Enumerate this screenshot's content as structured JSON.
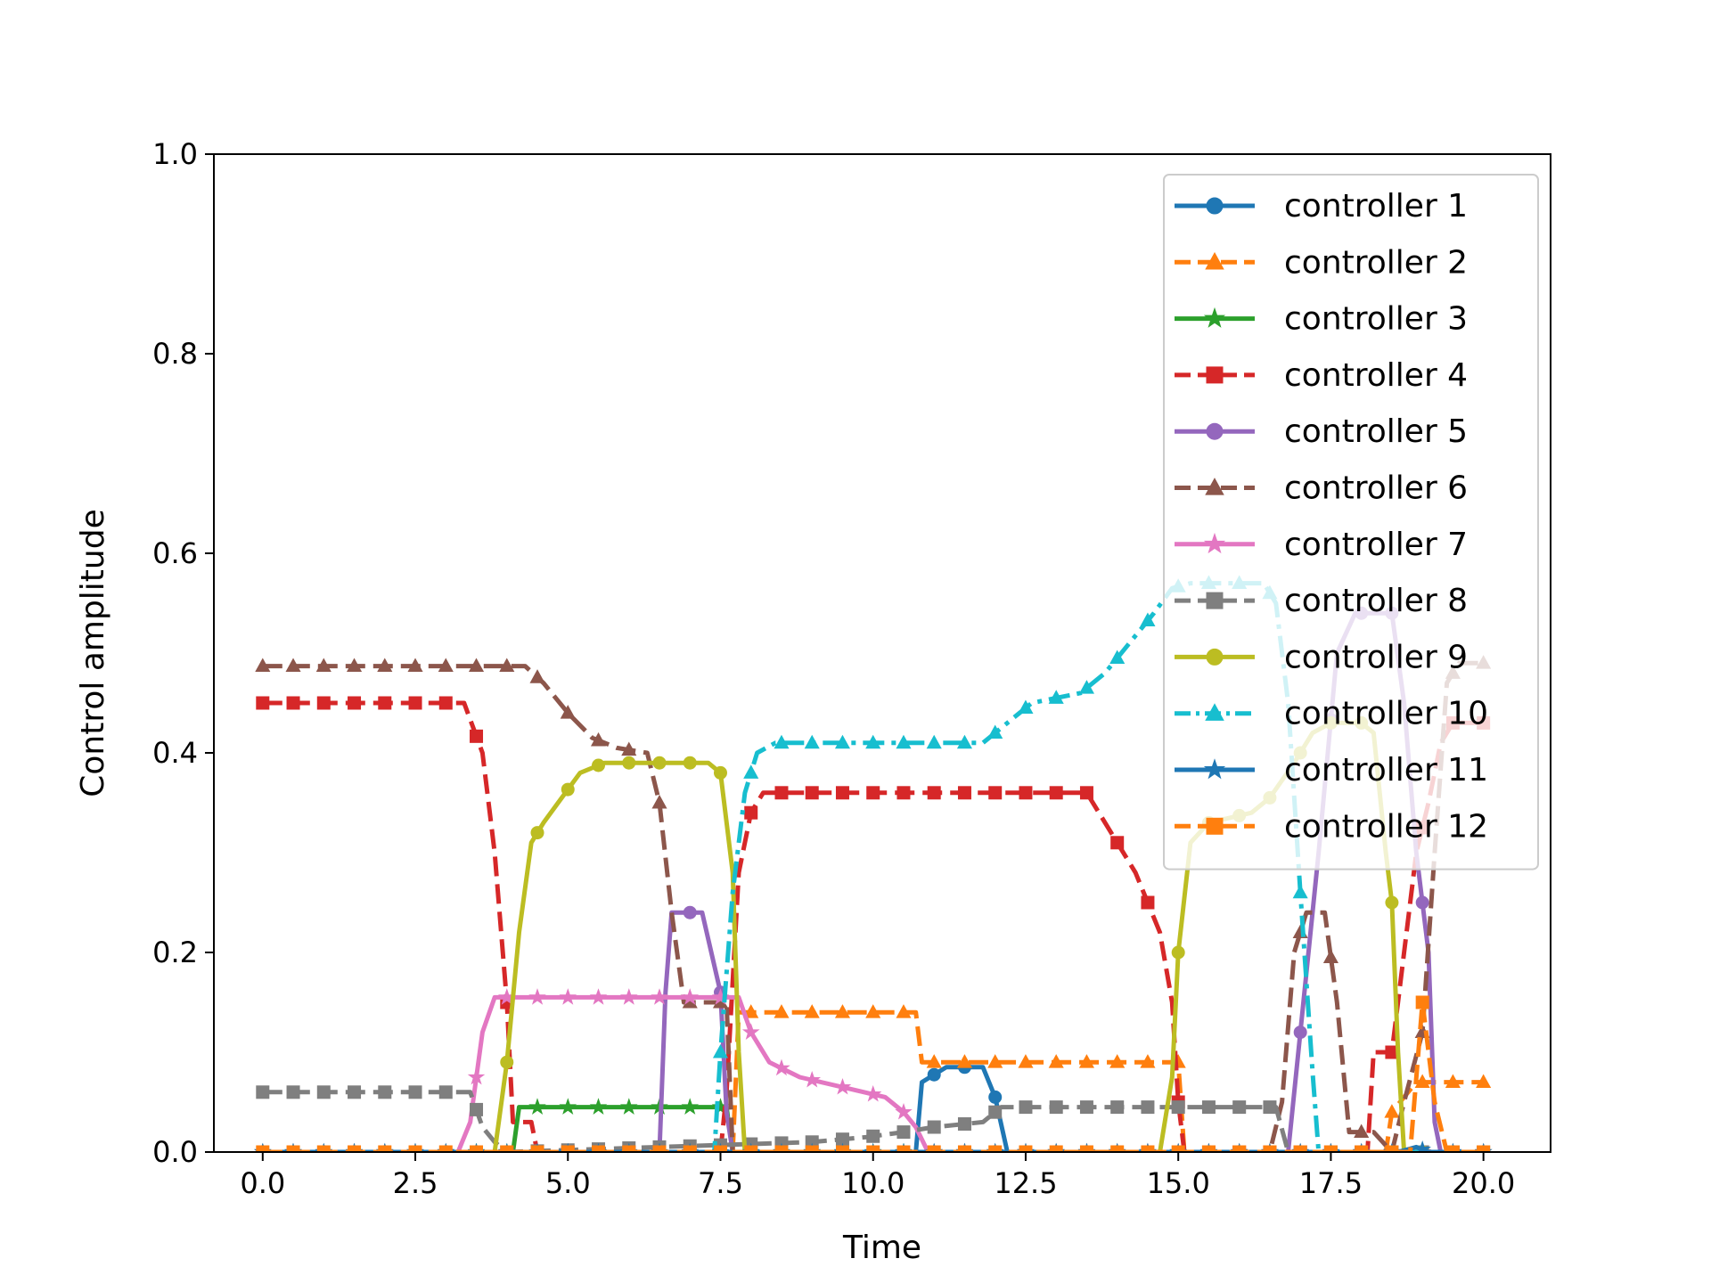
{
  "chart_data": {
    "type": "line",
    "title": "",
    "xlabel": "Time",
    "ylabel": "Control amplitude",
    "xlim": [
      -0.8,
      21.1
    ],
    "ylim": [
      0.0,
      1.0
    ],
    "xticks": [
      0.0,
      2.5,
      5.0,
      7.5,
      10.0,
      12.5,
      15.0,
      17.5,
      20.0
    ],
    "xtick_labels": [
      "0.0",
      "2.5",
      "5.0",
      "7.5",
      "10.0",
      "12.5",
      "15.0",
      "17.5",
      "20.0"
    ],
    "yticks": [
      0.0,
      0.2,
      0.4,
      0.6,
      0.8,
      1.0
    ],
    "ytick_labels": [
      "0.0",
      "0.2",
      "0.4",
      "0.6",
      "0.8",
      "1.0"
    ],
    "grid": false,
    "legend_position": "upper right",
    "series": [
      {
        "name": "controller 1",
        "color": "#1f77b4",
        "marker": "circle",
        "dash": "solid",
        "points": [
          [
            0,
            0
          ],
          [
            10.7,
            0
          ],
          [
            10.8,
            0.07
          ],
          [
            11.2,
            0.085
          ],
          [
            11.8,
            0.085
          ],
          [
            12.0,
            0.055
          ],
          [
            12.2,
            0
          ],
          [
            20,
            0
          ]
        ]
      },
      {
        "name": "controller 2",
        "color": "#ff7f0e",
        "marker": "triangle",
        "dash": "dashed",
        "points": [
          [
            0,
            0
          ],
          [
            7.7,
            0
          ],
          [
            7.8,
            0.14
          ],
          [
            10.7,
            0.14
          ],
          [
            10.8,
            0.09
          ],
          [
            15.0,
            0.09
          ],
          [
            15.1,
            0
          ],
          [
            18.4,
            0
          ],
          [
            18.5,
            0.04
          ],
          [
            18.9,
            0.07
          ],
          [
            20,
            0.07
          ]
        ]
      },
      {
        "name": "controller 3",
        "color": "#2ca02c",
        "marker": "star",
        "dash": "solid",
        "points": [
          [
            0,
            0
          ],
          [
            4.1,
            0
          ],
          [
            4.2,
            0.045
          ],
          [
            7.6,
            0.045
          ],
          [
            7.7,
            0
          ],
          [
            20,
            0
          ]
        ]
      },
      {
        "name": "controller 4",
        "color": "#d62728",
        "marker": "square",
        "dash": "dashed",
        "points": [
          [
            0,
            0.45
          ],
          [
            3.3,
            0.45
          ],
          [
            3.6,
            0.4
          ],
          [
            3.8,
            0.3
          ],
          [
            4.0,
            0.15
          ],
          [
            4.1,
            0.03
          ],
          [
            4.4,
            0.03
          ],
          [
            4.5,
            0
          ],
          [
            7.5,
            0
          ],
          [
            7.6,
            0.06
          ],
          [
            7.8,
            0.28
          ],
          [
            8.0,
            0.34
          ],
          [
            8.2,
            0.36
          ],
          [
            13.5,
            0.36
          ],
          [
            13.7,
            0.34
          ],
          [
            14.0,
            0.31
          ],
          [
            14.3,
            0.28
          ],
          [
            14.7,
            0.22
          ],
          [
            14.9,
            0.15
          ],
          [
            15.0,
            0.05
          ],
          [
            15.1,
            0
          ],
          [
            18.1,
            0
          ],
          [
            18.2,
            0.1
          ],
          [
            18.5,
            0.1
          ],
          [
            18.7,
            0.2
          ],
          [
            18.9,
            0.3
          ],
          [
            19.1,
            0.35
          ],
          [
            19.3,
            0.41
          ],
          [
            19.5,
            0.43
          ],
          [
            20,
            0.43
          ]
        ]
      },
      {
        "name": "controller 5",
        "color": "#9467bd",
        "marker": "circle",
        "dash": "solid",
        "points": [
          [
            0,
            0
          ],
          [
            6.5,
            0
          ],
          [
            6.6,
            0.16
          ],
          [
            6.7,
            0.24
          ],
          [
            7.2,
            0.24
          ],
          [
            7.5,
            0.16
          ],
          [
            7.6,
            0.04
          ],
          [
            7.7,
            0
          ],
          [
            16.8,
            0
          ],
          [
            17.0,
            0.12
          ],
          [
            17.3,
            0.3
          ],
          [
            17.6,
            0.5
          ],
          [
            17.9,
            0.54
          ],
          [
            18.5,
            0.54
          ],
          [
            18.7,
            0.45
          ],
          [
            18.9,
            0.3
          ],
          [
            19.1,
            0.2
          ],
          [
            19.2,
            0.03
          ],
          [
            19.3,
            0
          ],
          [
            20,
            0
          ]
        ]
      },
      {
        "name": "controller 6",
        "color": "#8c564b",
        "marker": "triangle",
        "dash": "dashed",
        "points": [
          [
            0,
            0.487
          ],
          [
            4.3,
            0.487
          ],
          [
            4.6,
            0.47
          ],
          [
            5.0,
            0.44
          ],
          [
            5.4,
            0.415
          ],
          [
            5.8,
            0.405
          ],
          [
            6.3,
            0.4
          ],
          [
            6.5,
            0.35
          ],
          [
            6.7,
            0.24
          ],
          [
            6.9,
            0.15
          ],
          [
            7.6,
            0.15
          ],
          [
            7.7,
            0
          ],
          [
            16.5,
            0
          ],
          [
            16.7,
            0.05
          ],
          [
            16.9,
            0.2
          ],
          [
            17.1,
            0.24
          ],
          [
            17.4,
            0.24
          ],
          [
            17.6,
            0.15
          ],
          [
            17.8,
            0.02
          ],
          [
            18.2,
            0.02
          ],
          [
            18.5,
            0
          ],
          [
            18.7,
            0.05
          ],
          [
            19.0,
            0.12
          ],
          [
            19.2,
            0.3
          ],
          [
            19.4,
            0.47
          ],
          [
            19.6,
            0.49
          ],
          [
            20,
            0.49
          ]
        ]
      },
      {
        "name": "controller 7",
        "color": "#e377c2",
        "marker": "star",
        "dash": "solid",
        "points": [
          [
            0,
            0
          ],
          [
            3.2,
            0
          ],
          [
            3.4,
            0.03
          ],
          [
            3.6,
            0.12
          ],
          [
            3.8,
            0.155
          ],
          [
            7.8,
            0.155
          ],
          [
            8.0,
            0.12
          ],
          [
            8.3,
            0.09
          ],
          [
            8.8,
            0.075
          ],
          [
            9.5,
            0.065
          ],
          [
            10.2,
            0.055
          ],
          [
            10.5,
            0.04
          ],
          [
            10.7,
            0.025
          ],
          [
            10.9,
            0
          ],
          [
            20,
            0
          ]
        ]
      },
      {
        "name": "controller 8",
        "color": "#7f7f7f",
        "marker": "square",
        "dash": "dashed",
        "points": [
          [
            0,
            0.06
          ],
          [
            3.4,
            0.06
          ],
          [
            3.6,
            0.025
          ],
          [
            3.8,
            0.01
          ],
          [
            4.0,
            0
          ],
          [
            9.0,
            0.01
          ],
          [
            9.9,
            0.015
          ],
          [
            10.5,
            0.02
          ],
          [
            11.0,
            0.025
          ],
          [
            11.8,
            0.03
          ],
          [
            12.1,
            0.045
          ],
          [
            16.6,
            0.045
          ],
          [
            16.8,
            0
          ],
          [
            20,
            0
          ]
        ]
      },
      {
        "name": "controller 9",
        "color": "#bcbd22",
        "marker": "circle",
        "dash": "solid",
        "points": [
          [
            0,
            0
          ],
          [
            3.8,
            0
          ],
          [
            4.0,
            0.09
          ],
          [
            4.2,
            0.22
          ],
          [
            4.4,
            0.31
          ],
          [
            4.6,
            0.33
          ],
          [
            4.9,
            0.355
          ],
          [
            5.2,
            0.38
          ],
          [
            5.6,
            0.39
          ],
          [
            7.3,
            0.39
          ],
          [
            7.5,
            0.38
          ],
          [
            7.7,
            0.28
          ],
          [
            7.8,
            0.1
          ],
          [
            7.9,
            0
          ],
          [
            14.7,
            0
          ],
          [
            14.9,
            0.075
          ],
          [
            15.0,
            0.2
          ],
          [
            15.2,
            0.31
          ],
          [
            15.5,
            0.33
          ],
          [
            16.2,
            0.34
          ],
          [
            16.5,
            0.355
          ],
          [
            16.9,
            0.39
          ],
          [
            17.2,
            0.42
          ],
          [
            17.5,
            0.43
          ],
          [
            18.0,
            0.43
          ],
          [
            18.2,
            0.42
          ],
          [
            18.4,
            0.3
          ],
          [
            18.5,
            0.25
          ],
          [
            18.6,
            0.1
          ],
          [
            18.7,
            0
          ],
          [
            20,
            0
          ]
        ]
      },
      {
        "name": "controller 10",
        "color": "#17becf",
        "marker": "triangle",
        "dash": "dashdot",
        "points": [
          [
            0,
            0
          ],
          [
            7.4,
            0
          ],
          [
            7.5,
            0.1
          ],
          [
            7.7,
            0.26
          ],
          [
            7.9,
            0.36
          ],
          [
            8.1,
            0.4
          ],
          [
            8.4,
            0.41
          ],
          [
            11.8,
            0.41
          ],
          [
            12.2,
            0.43
          ],
          [
            12.6,
            0.45
          ],
          [
            13.4,
            0.46
          ],
          [
            13.8,
            0.48
          ],
          [
            14.2,
            0.51
          ],
          [
            14.6,
            0.54
          ],
          [
            14.9,
            0.565
          ],
          [
            15.2,
            0.57
          ],
          [
            16.4,
            0.57
          ],
          [
            16.6,
            0.55
          ],
          [
            16.8,
            0.45
          ],
          [
            17.0,
            0.26
          ],
          [
            17.2,
            0.08
          ],
          [
            17.3,
            0
          ],
          [
            20,
            0
          ]
        ]
      },
      {
        "name": "controller 11",
        "color": "#1f77b4",
        "marker": "star",
        "dash": "solid",
        "points": [
          [
            0,
            0
          ],
          [
            18.6,
            0
          ],
          [
            18.9,
            0.005
          ],
          [
            19.1,
            0
          ],
          [
            20,
            0
          ]
        ]
      },
      {
        "name": "controller 12",
        "color": "#ff7f0e",
        "marker": "square",
        "dash": "dashed",
        "points": [
          [
            0,
            0
          ],
          [
            18.8,
            0
          ],
          [
            19.0,
            0.15
          ],
          [
            19.2,
            0.05
          ],
          [
            19.4,
            0
          ],
          [
            20,
            0
          ]
        ]
      }
    ]
  }
}
